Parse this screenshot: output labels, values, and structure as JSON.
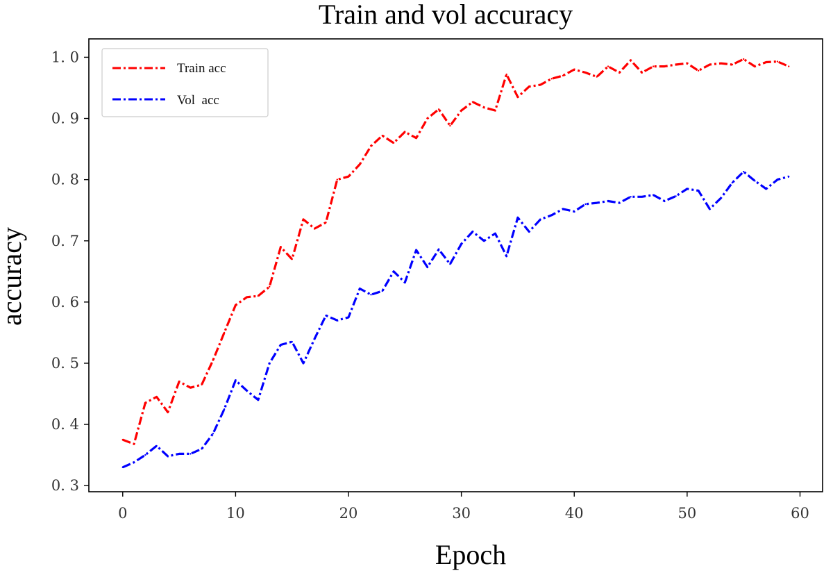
{
  "chart_data": {
    "type": "line",
    "title": "Train and vol accuracy",
    "xlabel": "Epoch",
    "ylabel": "accuracy",
    "xlim": [
      -3,
      62
    ],
    "ylim": [
      0.29,
      1.03
    ],
    "xticks": [
      0,
      10,
      20,
      30,
      40,
      50,
      60
    ],
    "yticks": [
      0.3,
      0.4,
      0.5,
      0.6,
      0.7,
      0.8,
      0.9,
      1.0
    ],
    "ytick_labels": [
      "0. 3",
      "0. 4",
      "0. 5",
      "0. 6",
      "0. 7",
      "0. 8",
      "0. 9",
      "1. 0"
    ],
    "grid": false,
    "legend_position": "top-left",
    "line_style": "dash-dot",
    "x": [
      0,
      1,
      2,
      3,
      4,
      5,
      6,
      7,
      8,
      9,
      10,
      11,
      12,
      13,
      14,
      15,
      16,
      17,
      18,
      19,
      20,
      21,
      22,
      23,
      24,
      25,
      26,
      27,
      28,
      29,
      30,
      31,
      32,
      33,
      34,
      35,
      36,
      37,
      38,
      39,
      40,
      41,
      42,
      43,
      44,
      45,
      46,
      47,
      48,
      49,
      50,
      51,
      52,
      53,
      54,
      55,
      56,
      57,
      58,
      59
    ],
    "series": [
      {
        "name": "Train acc",
        "color": "#ff0000",
        "values": [
          0.375,
          0.368,
          0.435,
          0.445,
          0.42,
          0.47,
          0.46,
          0.465,
          0.505,
          0.55,
          0.595,
          0.608,
          0.61,
          0.625,
          0.69,
          0.67,
          0.735,
          0.72,
          0.73,
          0.8,
          0.805,
          0.825,
          0.855,
          0.872,
          0.86,
          0.878,
          0.868,
          0.9,
          0.915,
          0.888,
          0.913,
          0.927,
          0.918,
          0.913,
          0.972,
          0.935,
          0.952,
          0.955,
          0.965,
          0.97,
          0.98,
          0.975,
          0.968,
          0.985,
          0.975,
          0.995,
          0.975,
          0.985,
          0.985,
          0.988,
          0.99,
          0.978,
          0.988,
          0.99,
          0.988,
          0.997,
          0.985,
          0.992,
          0.993,
          0.985
        ]
      },
      {
        "name": "Vol  acc",
        "color": "#0000ff",
        "values": [
          0.33,
          0.338,
          0.35,
          0.365,
          0.348,
          0.352,
          0.352,
          0.36,
          0.385,
          0.425,
          0.472,
          0.455,
          0.44,
          0.5,
          0.53,
          0.535,
          0.5,
          0.54,
          0.578,
          0.57,
          0.575,
          0.622,
          0.612,
          0.618,
          0.65,
          0.632,
          0.685,
          0.657,
          0.686,
          0.662,
          0.695,
          0.715,
          0.7,
          0.712,
          0.675,
          0.738,
          0.715,
          0.735,
          0.742,
          0.752,
          0.748,
          0.76,
          0.762,
          0.765,
          0.762,
          0.772,
          0.772,
          0.775,
          0.765,
          0.773,
          0.785,
          0.782,
          0.752,
          0.77,
          0.795,
          0.813,
          0.798,
          0.785,
          0.8,
          0.805
        ]
      }
    ]
  }
}
